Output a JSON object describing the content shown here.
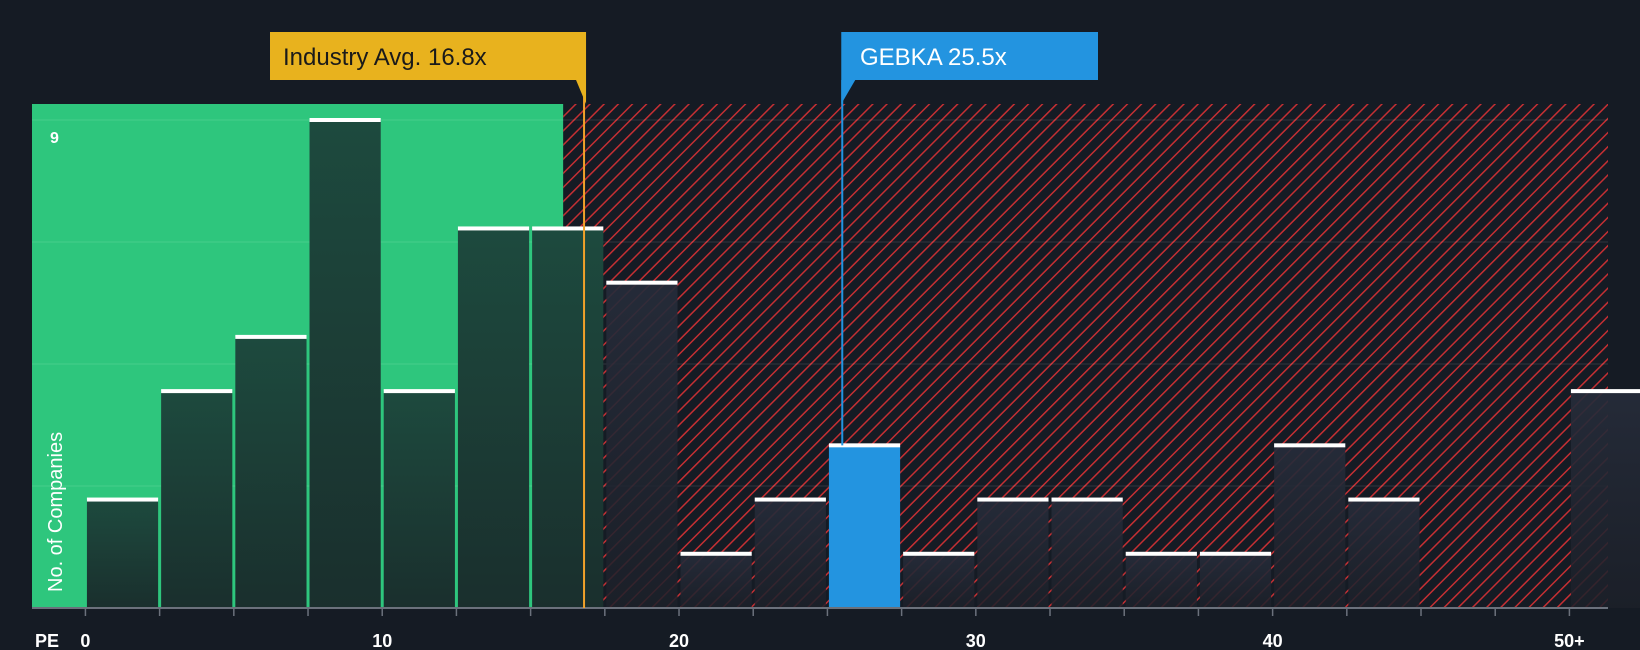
{
  "chart_data": {
    "type": "bar",
    "title": "",
    "xlabel": "PE",
    "ylabel": "No. of Companies",
    "ylim": [
      0,
      9
    ],
    "y_max_label": "9",
    "bin_width": 2.5,
    "bins": [
      {
        "start": 0,
        "end": 2.5,
        "value": 2
      },
      {
        "start": 2.5,
        "end": 5,
        "value": 4
      },
      {
        "start": 5,
        "end": 7.5,
        "value": 5
      },
      {
        "start": 7.5,
        "end": 10,
        "value": 9
      },
      {
        "start": 10,
        "end": 12.5,
        "value": 4
      },
      {
        "start": 12.5,
        "end": 15,
        "value": 7
      },
      {
        "start": 15,
        "end": 17.5,
        "value": 7
      },
      {
        "start": 17.5,
        "end": 20,
        "value": 6
      },
      {
        "start": 20,
        "end": 22.5,
        "value": 1
      },
      {
        "start": 22.5,
        "end": 25,
        "value": 2
      },
      {
        "start": 25,
        "end": 27.5,
        "value": 3,
        "highlight": true
      },
      {
        "start": 27.5,
        "end": 30,
        "value": 1
      },
      {
        "start": 30,
        "end": 32.5,
        "value": 2
      },
      {
        "start": 32.5,
        "end": 35,
        "value": 2
      },
      {
        "start": 35,
        "end": 37.5,
        "value": 1
      },
      {
        "start": 37.5,
        "end": 40,
        "value": 1
      },
      {
        "start": 40,
        "end": 42.5,
        "value": 3
      },
      {
        "start": 42.5,
        "end": 45,
        "value": 2
      },
      {
        "start": 45,
        "end": 47.5,
        "value": 0
      },
      {
        "start": 47.5,
        "end": 50,
        "value": 0
      },
      {
        "start": 50,
        "end": 52.5,
        "value": 4
      }
    ],
    "x_ticks": [
      {
        "value": 0,
        "label": "0"
      },
      {
        "value": 10,
        "label": "10"
      },
      {
        "value": 20,
        "label": "20"
      },
      {
        "value": 30,
        "label": "30"
      },
      {
        "value": 40,
        "label": "40"
      },
      {
        "value": 50,
        "label": "50+"
      }
    ],
    "x_range": [
      -1.8,
      51.3
    ],
    "fair_zone_end": 16.1,
    "industry_avg": {
      "value": 16.8,
      "label": "Industry Avg. 16.8x"
    },
    "company": {
      "value": 25.5,
      "label": "GEBKA 25.5x"
    },
    "colors": {
      "background": "#151b24",
      "fair_zone": "#2ec67d",
      "overvalued_zone": "#c42f33",
      "bar_dark": "#1d4a3e",
      "bar_gray": "#222834",
      "highlight_bar": "#2394e0",
      "industry_callout": "#e8b21e",
      "industry_line": "#f0a12a",
      "company_callout": "#2394e0"
    }
  }
}
